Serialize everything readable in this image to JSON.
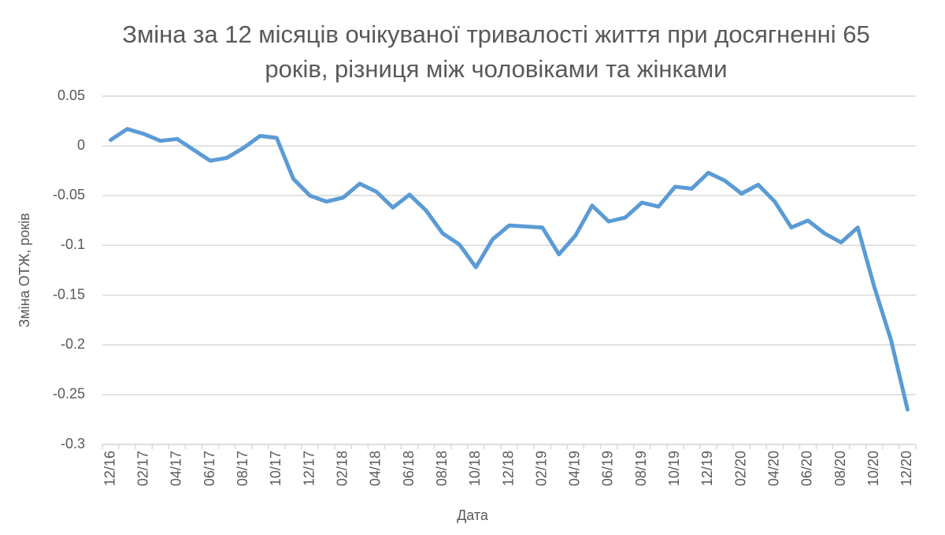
{
  "chart_data": {
    "type": "line",
    "title": "Зміна за 12 місяців очікуваної тривалості життя при досягненні 65 років, різниця між чоловіками та жінками",
    "x_label": "Дата",
    "y_label": "Зміна ОТЖ, років",
    "categories": [
      "12/16",
      null,
      "02/17",
      null,
      "04/17",
      null,
      "06/17",
      null,
      "08/17",
      null,
      "10/17",
      null,
      "12/17",
      null,
      "02/18",
      null,
      "04/18",
      null,
      "06/18",
      null,
      "08/18",
      null,
      "10/18",
      null,
      "12/18",
      null,
      "02/19",
      null,
      "04/19",
      null,
      "06/19",
      null,
      "08/19",
      null,
      "10/19",
      null,
      "12/19",
      null,
      "02/20",
      null,
      "04/20",
      null,
      "06/20",
      null,
      "08/20",
      null,
      "10/20",
      null,
      "12/20"
    ],
    "series": [
      {
        "color": "#5b9bd5",
        "values": [
          0.006,
          0.017,
          0.012,
          0.005,
          0.007,
          -0.004,
          -0.015,
          -0.012,
          -0.002,
          0.01,
          0.008,
          -0.033,
          -0.05,
          -0.056,
          -0.052,
          -0.038,
          -0.046,
          -0.062,
          -0.049,
          -0.065,
          -0.088,
          -0.099,
          -0.122,
          -0.094,
          -0.08,
          -0.081,
          -0.082,
          -0.109,
          -0.09,
          -0.06,
          -0.076,
          -0.072,
          -0.057,
          -0.061,
          -0.041,
          -0.043,
          -0.027,
          -0.035,
          -0.048,
          -0.039,
          -0.056,
          -0.082,
          -0.075,
          -0.088,
          -0.097,
          -0.082,
          -0.142,
          -0.195,
          -0.265
        ]
      }
    ],
    "ylim": [
      -0.3,
      0.05
    ],
    "yticks": [
      0.05,
      0,
      -0.05,
      -0.1,
      -0.15,
      -0.2,
      -0.25,
      -0.3
    ],
    "grid": true
  }
}
